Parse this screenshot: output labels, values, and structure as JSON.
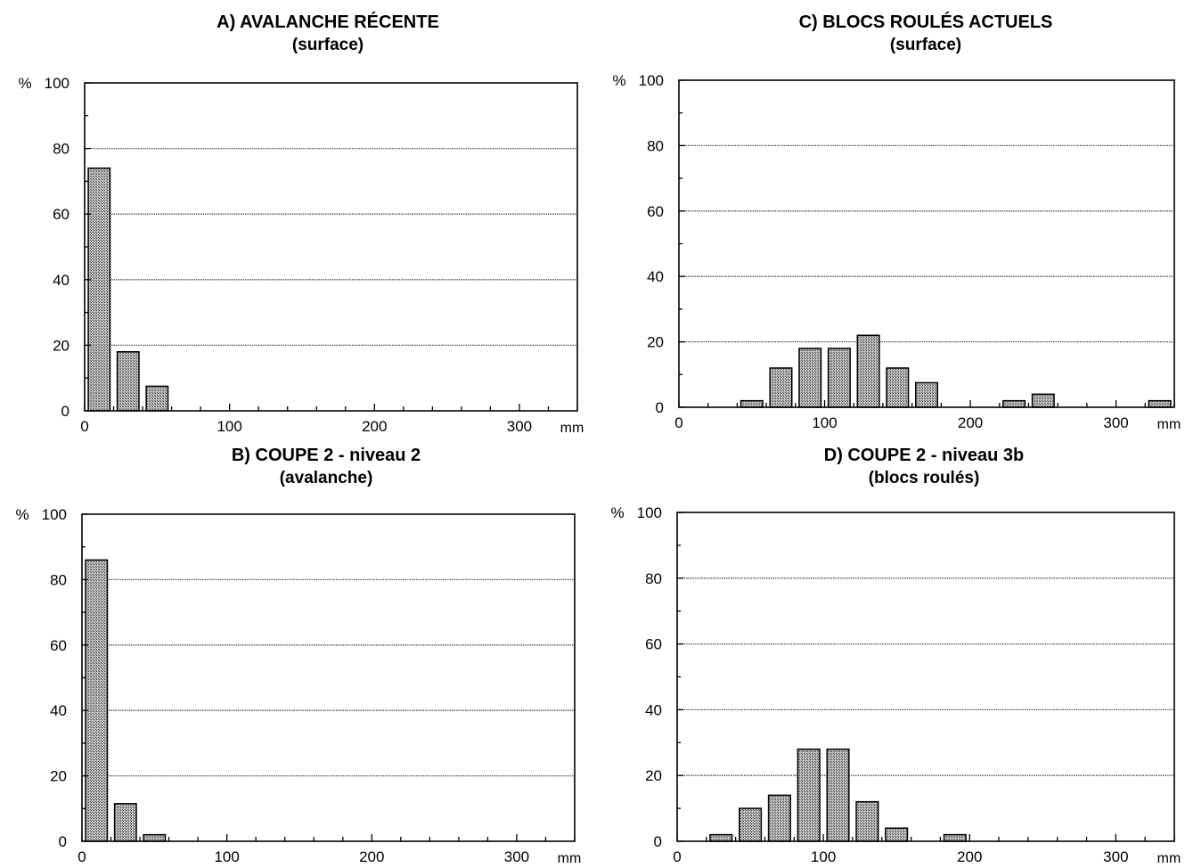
{
  "chart_data": [
    {
      "id": "A",
      "type": "bar",
      "title": "A) AVALANCHE RÉCENTE",
      "subtitle": "(surface)",
      "ylabel": "%",
      "xlabel": "mm",
      "ylim": [
        0,
        100
      ],
      "xlim": [
        0,
        340
      ],
      "y_ticks": [
        "0",
        "20",
        "40",
        "60",
        "80",
        "100"
      ],
      "x_ticks": [
        "0",
        "100",
        "200",
        "300"
      ],
      "grid": true,
      "bar_width": 15,
      "bars": [
        {
          "x": 10,
          "value": 74
        },
        {
          "x": 30,
          "value": 18
        },
        {
          "x": 50,
          "value": 7.5
        }
      ]
    },
    {
      "id": "C",
      "type": "bar",
      "title": "C) BLOCS ROULÉS ACTUELS",
      "subtitle": "(surface)",
      "ylabel": "%",
      "xlabel": "mm",
      "ylim": [
        0,
        100
      ],
      "xlim": [
        0,
        340
      ],
      "y_ticks": [
        "0",
        "20",
        "40",
        "60",
        "80",
        "100"
      ],
      "x_ticks": [
        "0",
        "100",
        "200",
        "300"
      ],
      "grid": true,
      "bar_width": 15,
      "bars": [
        {
          "x": 50,
          "value": 2
        },
        {
          "x": 70,
          "value": 12
        },
        {
          "x": 90,
          "value": 18
        },
        {
          "x": 110,
          "value": 18
        },
        {
          "x": 130,
          "value": 22
        },
        {
          "x": 150,
          "value": 12
        },
        {
          "x": 170,
          "value": 7.5
        },
        {
          "x": 230,
          "value": 2
        },
        {
          "x": 250,
          "value": 4
        },
        {
          "x": 330,
          "value": 2
        }
      ]
    },
    {
      "id": "B",
      "type": "bar",
      "title": "B) COUPE 2 - niveau 2",
      "subtitle": "(avalanche)",
      "ylabel": "%",
      "xlabel": "mm",
      "ylim": [
        0,
        100
      ],
      "xlim": [
        0,
        340
      ],
      "y_ticks": [
        "0",
        "20",
        "40",
        "60",
        "80",
        "100"
      ],
      "x_ticks": [
        "0",
        "100",
        "200",
        "300"
      ],
      "grid": true,
      "bar_width": 15,
      "bars": [
        {
          "x": 10,
          "value": 86
        },
        {
          "x": 30,
          "value": 11.5
        },
        {
          "x": 50,
          "value": 2
        }
      ]
    },
    {
      "id": "D",
      "type": "bar",
      "title": "D) COUPE 2 - niveau 3b",
      "subtitle": "(blocs roulés)",
      "ylabel": "%",
      "xlabel": "mm",
      "ylim": [
        0,
        100
      ],
      "xlim": [
        0,
        340
      ],
      "y_ticks": [
        "0",
        "20",
        "40",
        "60",
        "80",
        "100"
      ],
      "x_ticks": [
        "0",
        "100",
        "200",
        "300"
      ],
      "grid": true,
      "bar_width": 15,
      "bars": [
        {
          "x": 30,
          "value": 2
        },
        {
          "x": 50,
          "value": 10
        },
        {
          "x": 70,
          "value": 14
        },
        {
          "x": 90,
          "value": 28
        },
        {
          "x": 110,
          "value": 28
        },
        {
          "x": 130,
          "value": 12
        },
        {
          "x": 150,
          "value": 4
        },
        {
          "x": 190,
          "value": 2
        }
      ]
    }
  ],
  "colors": {
    "bar_fill": "#8c8c8c",
    "bar_stroke": "#000000",
    "grid": "#555555",
    "axis": "#000000"
  }
}
